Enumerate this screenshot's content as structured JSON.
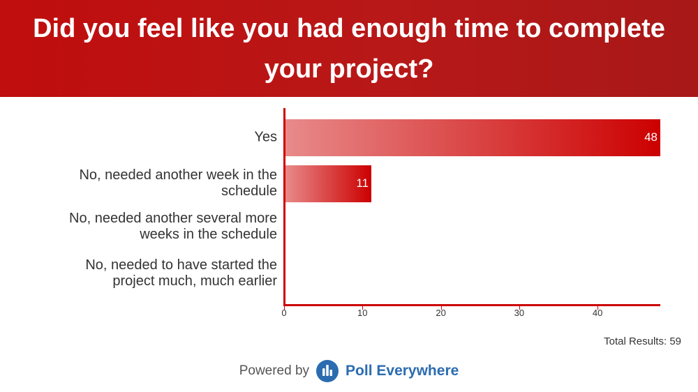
{
  "header": {
    "title": "Did you feel like you had enough time to complete your project?"
  },
  "chart_data": {
    "type": "bar",
    "orientation": "horizontal",
    "title": "Did you feel like you had enough time to complete your project?",
    "categories": [
      "Yes",
      "No, needed another week in the schedule",
      "No, needed another several more weeks in the schedule",
      "No, needed to have started the project much, much earlier"
    ],
    "values": [
      48,
      11,
      0,
      0
    ],
    "xlim": [
      0,
      48
    ],
    "xticks": [
      0,
      10,
      20,
      30,
      40
    ],
    "grid": false,
    "colors": {
      "bar_start": "#e88a8a",
      "bar_end": "#cc0000",
      "axis": "#cc0000"
    }
  },
  "footer": {
    "total_results": "Total Results: 59",
    "powered_by": "Powered by",
    "brand": "Poll Everywhere",
    "brand_icon": "poll-everywhere-logo-icon",
    "brand_color": "#2b6cb0"
  }
}
